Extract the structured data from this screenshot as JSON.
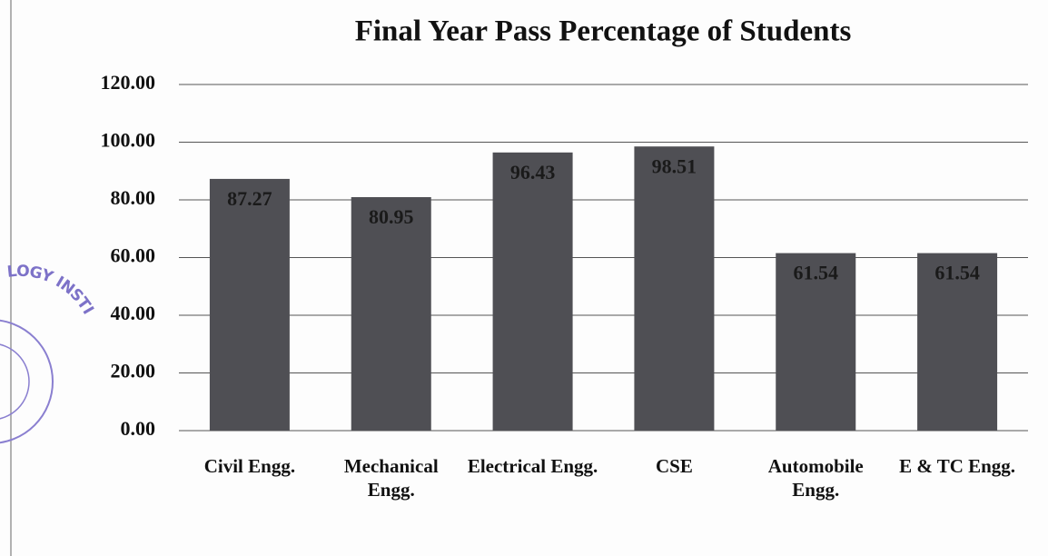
{
  "chart_data": {
    "type": "bar",
    "title": "Final Year Pass Percentage of Students",
    "categories": [
      "Civil Engg.",
      "Mechanical Engg.",
      "Electrical Engg.",
      "CSE",
      "Automobile Engg.",
      "E & TC Engg."
    ],
    "values": [
      87.27,
      80.95,
      96.43,
      98.51,
      61.54,
      61.54
    ],
    "color": "#4f4f54",
    "ylim": [
      0,
      120
    ],
    "yticks": [
      {
        "value": 0,
        "label": "0.00"
      },
      {
        "value": 20,
        "label": "20.00"
      },
      {
        "value": 40,
        "label": "40.00"
      },
      {
        "value": 60,
        "label": "60.00"
      },
      {
        "value": 80,
        "label": "80.00"
      },
      {
        "value": 100,
        "label": "100.00"
      },
      {
        "value": 120,
        "label": "120.00"
      }
    ],
    "grid": true,
    "stamp": "LOGY INSTI"
  }
}
